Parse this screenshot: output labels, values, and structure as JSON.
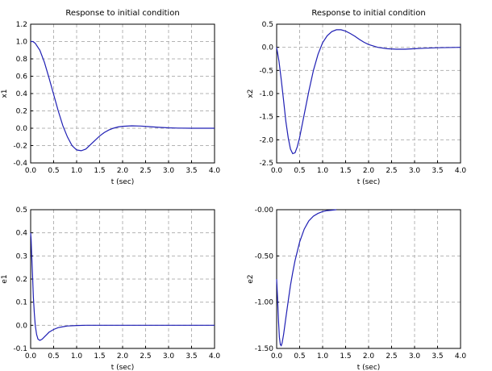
{
  "chart_data": [
    {
      "type": "line",
      "title": "Response to initial condition",
      "xlabel": "t (sec)",
      "ylabel": "x1",
      "xlim": [
        0,
        4
      ],
      "ylim": [
        -0.4,
        1.2
      ],
      "xticks": [
        "0.0",
        "0.5",
        "1.0",
        "1.5",
        "2.0",
        "2.5",
        "3.0",
        "3.5",
        "4.0"
      ],
      "yticks": [
        "1.2",
        "1.0",
        "0.8",
        "0.6",
        "0.4",
        "0.2",
        "0.0",
        "-0.2",
        "-0.4"
      ],
      "grid": true,
      "color": "#1f1fb4",
      "series": [
        {
          "x": [
            0,
            0.05,
            0.1,
            0.2,
            0.3,
            0.4,
            0.5,
            0.6,
            0.7,
            0.8,
            0.9,
            1.0,
            1.1,
            1.2,
            1.3,
            1.4,
            1.5,
            1.6,
            1.7,
            1.8,
            1.9,
            2.0,
            2.2,
            2.4,
            2.6,
            2.8,
            3.0,
            3.2,
            3.5,
            4.0
          ],
          "y": [
            1.0,
            1.0,
            0.98,
            0.9,
            0.76,
            0.58,
            0.39,
            0.2,
            0.03,
            -0.1,
            -0.2,
            -0.25,
            -0.26,
            -0.24,
            -0.19,
            -0.14,
            -0.09,
            -0.05,
            -0.02,
            0.0,
            0.015,
            0.022,
            0.028,
            0.025,
            0.018,
            0.01,
            0.005,
            0.002,
            0.0,
            0.0
          ]
        }
      ]
    },
    {
      "type": "line",
      "title": "Response to initial condition",
      "xlabel": "t (sec)",
      "ylabel": "x2",
      "xlim": [
        0,
        4
      ],
      "ylim": [
        -2.5,
        0.5
      ],
      "xticks": [
        "0.0",
        "0.5",
        "1.0",
        "1.5",
        "2.0",
        "2.5",
        "3.0",
        "3.5",
        "4.0"
      ],
      "yticks": [
        "0.5",
        "0.0",
        "-0.5",
        "-1.0",
        "-1.5",
        "-2.0",
        "-2.5"
      ],
      "grid": true,
      "color": "#1f1fb4",
      "series": [
        {
          "x": [
            0,
            0.05,
            0.1,
            0.15,
            0.2,
            0.25,
            0.3,
            0.35,
            0.4,
            0.45,
            0.5,
            0.6,
            0.7,
            0.8,
            0.9,
            1.0,
            1.1,
            1.2,
            1.3,
            1.4,
            1.5,
            1.6,
            1.7,
            1.8,
            1.9,
            2.0,
            2.2,
            2.4,
            2.6,
            2.8,
            3.0,
            3.2,
            3.5,
            4.0
          ],
          "y": [
            0.0,
            -0.3,
            -0.7,
            -1.15,
            -1.6,
            -1.95,
            -2.2,
            -2.3,
            -2.28,
            -2.15,
            -1.95,
            -1.45,
            -0.95,
            -0.5,
            -0.15,
            0.1,
            0.25,
            0.34,
            0.38,
            0.38,
            0.35,
            0.3,
            0.24,
            0.17,
            0.11,
            0.06,
            0.0,
            -0.03,
            -0.04,
            -0.04,
            -0.03,
            -0.02,
            -0.01,
            0.0
          ]
        }
      ]
    },
    {
      "type": "line",
      "title": "",
      "xlabel": "t (sec)",
      "ylabel": "e1",
      "xlim": [
        0,
        4
      ],
      "ylim": [
        -0.1,
        0.5
      ],
      "xticks": [
        "0.0",
        "0.5",
        "1.0",
        "1.5",
        "2.0",
        "2.5",
        "3.0",
        "3.5",
        "4.0"
      ],
      "yticks": [
        "0.5",
        "0.4",
        "0.3",
        "0.2",
        "0.1",
        "0.0",
        "-0.1"
      ],
      "grid": true,
      "color": "#1f1fb4",
      "series": [
        {
          "x": [
            0,
            0.01,
            0.02,
            0.04,
            0.06,
            0.08,
            0.1,
            0.13,
            0.16,
            0.2,
            0.25,
            0.3,
            0.35,
            0.4,
            0.5,
            0.6,
            0.7,
            0.8,
            1.0,
            1.2,
            1.5,
            2.0,
            3.0,
            4.0
          ],
          "y": [
            0.4,
            0.37,
            0.32,
            0.22,
            0.12,
            0.05,
            0.0,
            -0.04,
            -0.06,
            -0.065,
            -0.06,
            -0.05,
            -0.04,
            -0.03,
            -0.018,
            -0.01,
            -0.006,
            -0.003,
            -0.001,
            0.0,
            0.0,
            0.0,
            0.0,
            0.0
          ]
        }
      ]
    },
    {
      "type": "line",
      "title": "",
      "xlabel": "t (sec)",
      "ylabel": "e2",
      "xlim": [
        0,
        4
      ],
      "ylim": [
        -1.5,
        0
      ],
      "xticks": [
        "0.0",
        "0.5",
        "1.0",
        "1.5",
        "2.0",
        "2.5",
        "3.0",
        "3.5",
        "4.0"
      ],
      "yticks": [
        "-0.00",
        "-0.50",
        "-1.00",
        "-1.50"
      ],
      "grid": true,
      "color": "#1f1fb4",
      "series": [
        {
          "x": [
            0,
            0.02,
            0.04,
            0.06,
            0.08,
            0.1,
            0.12,
            0.15,
            0.2,
            0.25,
            0.3,
            0.35,
            0.4,
            0.5,
            0.6,
            0.7,
            0.8,
            0.9,
            1.0,
            1.1,
            1.2,
            1.3
          ],
          "y": [
            -0.75,
            -0.95,
            -1.2,
            -1.38,
            -1.46,
            -1.47,
            -1.44,
            -1.35,
            -1.17,
            -0.99,
            -0.82,
            -0.68,
            -0.55,
            -0.35,
            -0.21,
            -0.12,
            -0.07,
            -0.04,
            -0.02,
            -0.01,
            -0.005,
            0.0
          ]
        }
      ]
    }
  ]
}
